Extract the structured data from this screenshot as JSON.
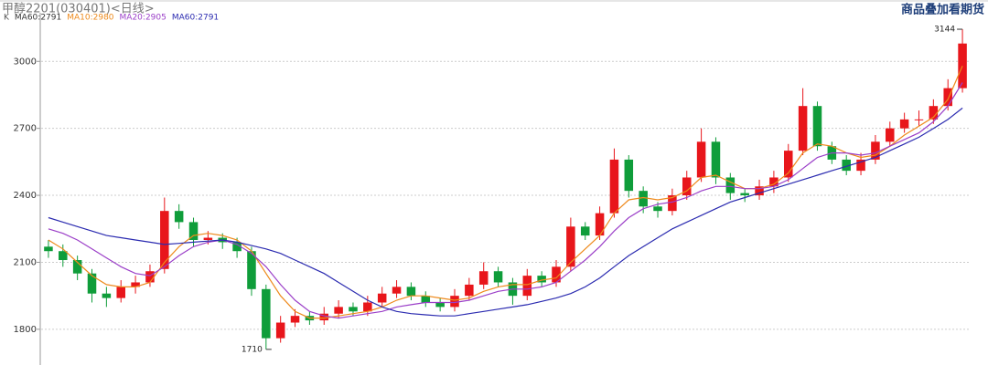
{
  "chart_data": {
    "type": "candlestick",
    "title": "甲醇2201(030401)<日线>",
    "top_right_text": "商品叠加看期货",
    "legend_prefix": [
      {
        "text": "K",
        "color": "#555555"
      },
      {
        "text": "MA60:2791",
        "color": "#333333"
      }
    ],
    "ylim": [
      1640,
      3185
    ],
    "yticks": [
      1800,
      2100,
      2400,
      2700,
      3000
    ],
    "grid": true,
    "up_color": "#e8161b",
    "down_color": "#0f9d3a",
    "open": [
      2170,
      2150,
      2110,
      2050,
      1960,
      1940,
      1990,
      2010,
      2070,
      2330,
      2280,
      2200,
      2210,
      2190,
      2150,
      1980,
      1760,
      1830,
      1860,
      1840,
      1870,
      1900,
      1880,
      1920,
      1960,
      1990,
      1950,
      1920,
      1900,
      1950,
      2000,
      2060,
      2010,
      1950,
      2040,
      2010,
      2080,
      2260,
      2220,
      2320,
      2560,
      2420,
      2350,
      2330,
      2400,
      2480,
      2640,
      2480,
      2410,
      2400,
      2440,
      2480,
      2600,
      2800,
      2620,
      2560,
      2510,
      2560,
      2640,
      2700,
      2740,
      2740,
      2800,
      2880
    ],
    "high": [
      2200,
      2180,
      2130,
      2070,
      1990,
      2020,
      2040,
      2090,
      2390,
      2360,
      2300,
      2240,
      2230,
      2210,
      2170,
      2000,
      1860,
      1890,
      1880,
      1900,
      1930,
      1920,
      1950,
      1990,
      2020,
      2010,
      1970,
      1940,
      1980,
      2030,
      2100,
      2080,
      2030,
      2070,
      2060,
      2110,
      2300,
      2280,
      2350,
      2610,
      2580,
      2440,
      2370,
      2430,
      2510,
      2700,
      2660,
      2500,
      2430,
      2470,
      2510,
      2630,
      2880,
      2820,
      2640,
      2580,
      2590,
      2670,
      2730,
      2770,
      2780,
      2830,
      2920,
      3144
    ],
    "low": [
      2120,
      2080,
      2020,
      1920,
      1900,
      1920,
      1960,
      1990,
      2050,
      2250,
      2170,
      2180,
      2160,
      2120,
      1950,
      1710,
      1740,
      1810,
      1820,
      1820,
      1850,
      1860,
      1860,
      1900,
      1940,
      1930,
      1900,
      1880,
      1880,
      1930,
      1980,
      1990,
      1910,
      1930,
      1990,
      1990,
      2060,
      2200,
      2200,
      2300,
      2390,
      2320,
      2300,
      2310,
      2380,
      2460,
      2450,
      2380,
      2370,
      2380,
      2410,
      2460,
      2580,
      2600,
      2540,
      2490,
      2490,
      2540,
      2620,
      2680,
      2710,
      2720,
      2780,
      2860
    ],
    "close": [
      2150,
      2110,
      2050,
      1960,
      1940,
      1990,
      2010,
      2060,
      2330,
      2280,
      2200,
      2210,
      2190,
      2150,
      1980,
      1760,
      1830,
      1860,
      1840,
      1870,
      1900,
      1880,
      1920,
      1960,
      1990,
      1950,
      1920,
      1900,
      1950,
      2000,
      2060,
      2010,
      1950,
      2040,
      2010,
      2080,
      2260,
      2220,
      2320,
      2560,
      2420,
      2350,
      2330,
      2400,
      2480,
      2640,
      2480,
      2410,
      2400,
      2440,
      2480,
      2600,
      2800,
      2620,
      2560,
      2510,
      2560,
      2640,
      2700,
      2740,
      2740,
      2800,
      2880,
      3080
    ],
    "series": [
      {
        "name": "MA10:2980",
        "color": "#ee8a1c",
        "values": [
          2200,
          2160,
          2100,
          2040,
          2000,
          1990,
          1990,
          2010,
          2100,
          2170,
          2220,
          2230,
          2220,
          2200,
          2150,
          2050,
          1950,
          1880,
          1850,
          1850,
          1860,
          1870,
          1880,
          1900,
          1930,
          1950,
          1950,
          1940,
          1930,
          1940,
          1970,
          1990,
          2000,
          2000,
          2020,
          2030,
          2100,
          2160,
          2220,
          2320,
          2380,
          2390,
          2380,
          2390,
          2420,
          2480,
          2490,
          2460,
          2430,
          2430,
          2450,
          2500,
          2590,
          2630,
          2620,
          2590,
          2570,
          2580,
          2620,
          2670,
          2710,
          2750,
          2830,
          2980
        ]
      },
      {
        "name": "MA20:2905",
        "color": "#9b3fc8",
        "values": [
          2250,
          2230,
          2200,
          2160,
          2120,
          2080,
          2050,
          2040,
          2080,
          2130,
          2170,
          2190,
          2200,
          2180,
          2140,
          2080,
          2000,
          1930,
          1880,
          1860,
          1850,
          1860,
          1870,
          1880,
          1900,
          1910,
          1920,
          1920,
          1920,
          1930,
          1950,
          1970,
          1980,
          1980,
          1990,
          2010,
          2060,
          2110,
          2170,
          2240,
          2300,
          2340,
          2360,
          2370,
          2390,
          2420,
          2440,
          2440,
          2430,
          2430,
          2440,
          2470,
          2520,
          2570,
          2590,
          2590,
          2580,
          2590,
          2620,
          2650,
          2680,
          2730,
          2800,
          2905
        ]
      },
      {
        "name": "MA60:2791",
        "color": "#2b2bb0",
        "values": [
          2300,
          2280,
          2260,
          2240,
          2220,
          2210,
          2200,
          2190,
          2180,
          2185,
          2190,
          2195,
          2200,
          2190,
          2175,
          2160,
          2140,
          2110,
          2080,
          2050,
          2010,
          1970,
          1930,
          1900,
          1880,
          1870,
          1865,
          1860,
          1860,
          1870,
          1880,
          1890,
          1900,
          1910,
          1925,
          1940,
          1960,
          1990,
          2030,
          2080,
          2130,
          2170,
          2210,
          2250,
          2280,
          2310,
          2340,
          2370,
          2390,
          2410,
          2430,
          2450,
          2470,
          2490,
          2510,
          2530,
          2550,
          2570,
          2600,
          2630,
          2660,
          2700,
          2740,
          2791
        ]
      }
    ]
  }
}
